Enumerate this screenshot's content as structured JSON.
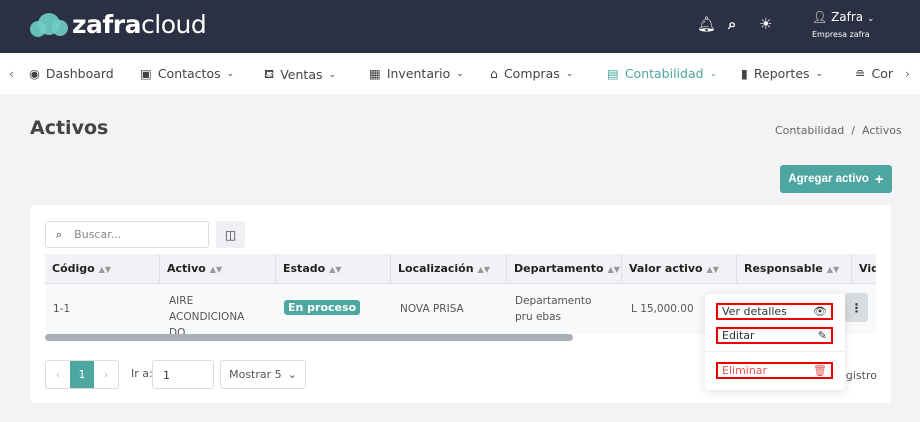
{
  "header": {
    "logo": {
      "bold": "zafra",
      "light": "cloud"
    },
    "icons": [
      "bell-icon",
      "search-icon",
      "sun-icon"
    ],
    "user": {
      "name": "Zafra",
      "company": "Empresa zafra"
    }
  },
  "nav": {
    "items": [
      {
        "label": "Dashboard",
        "icon": "dashboard-icon"
      },
      {
        "label": "Contactos",
        "icon": "contacts-icon"
      },
      {
        "label": "Ventas",
        "icon": "sales-icon"
      },
      {
        "label": "Inventario",
        "icon": "inventory-icon"
      },
      {
        "label": "Compras",
        "icon": "store-icon"
      },
      {
        "label": "Contabilidad",
        "icon": "calculator-icon",
        "active": true
      },
      {
        "label": "Reportes",
        "icon": "chart-icon"
      },
      {
        "label": "Cor",
        "icon": "config-icon"
      }
    ]
  },
  "page": {
    "title": "Activos",
    "breadcrumb": "Contabilidad  /  Activos",
    "add_button": "Agregar activo",
    "add_icon": "+"
  },
  "search": {
    "placeholder": "Buscar..."
  },
  "table": {
    "columns": [
      "Código",
      "Activo",
      "Estado",
      "Localización",
      "Departamento",
      "Valor activo",
      "Responsable",
      "Vid"
    ],
    "rows": [
      {
        "codigo": "1-1",
        "activo": "AIRE ACONDICIONA DO",
        "estado": "En proceso",
        "localizacion": "NOVA PRISA",
        "departamento": "Departamento pru ebas",
        "valor": "L 15,000.00",
        "responsable": ""
      }
    ]
  },
  "menu": {
    "view": "Ver detalles",
    "edit": "Editar",
    "delete": "Eliminar"
  },
  "pagination": {
    "page": "1",
    "goto_label": "Ir a:",
    "goto_value": "1",
    "show": "Mostrar 5",
    "records": "egistro"
  },
  "colors": {
    "header": "#2b3042",
    "accent": "#4da6a0",
    "danger": "#e55353"
  }
}
